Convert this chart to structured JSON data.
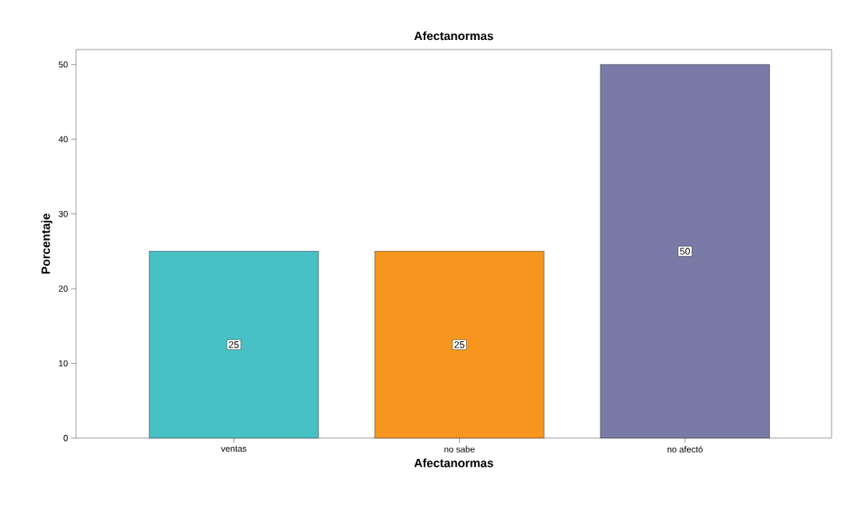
{
  "chart_data": {
    "type": "bar",
    "title": "Afectanormas",
    "xlabel": "Afectanormas",
    "ylabel": "Porcentaje",
    "categories": [
      "ventas",
      "no sabe",
      "no afectó"
    ],
    "values": [
      25,
      25,
      50
    ],
    "colors": [
      "#48c1c5",
      "#f7961e",
      "#7a7aa6"
    ],
    "ylim": [
      0,
      52
    ],
    "yticks": [
      0,
      10,
      20,
      30,
      40,
      50
    ],
    "grid": false,
    "data_labels": true
  }
}
